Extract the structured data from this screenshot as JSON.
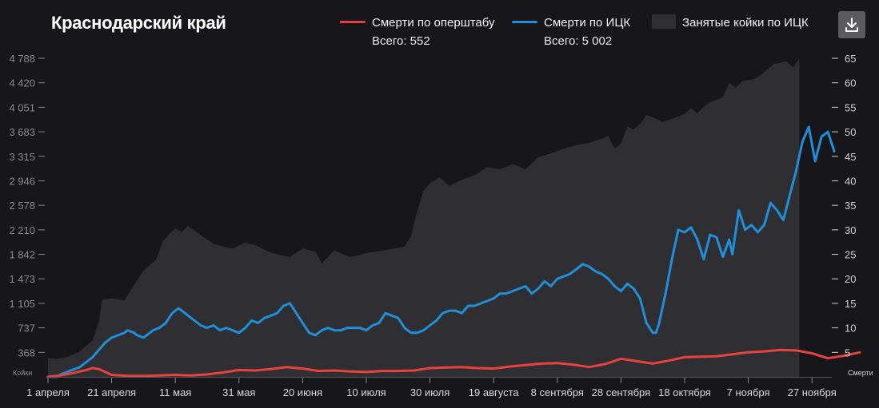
{
  "header": {
    "title": "Краснодарский край",
    "download_icon": "download-icon"
  },
  "legend": {
    "ops": {
      "label": "Смерти по оперштабу",
      "total": "Всего: 552"
    },
    "ick": {
      "label": "Смерти по ИЦК",
      "total": "Всего: 5 002"
    },
    "beds": {
      "label": "Занятые койки по ИЦК"
    }
  },
  "colors": {
    "ops": "#e8423c",
    "ick": "#1e8fd8",
    "beds": "#2f2f33",
    "background": "#16161b"
  },
  "chart_data": {
    "type": "line",
    "left_axis": {
      "label": "Койки",
      "ticks": [
        "368",
        "737",
        "1 105",
        "1 473",
        "1 842",
        "2 210",
        "2 578",
        "2 946",
        "3 315",
        "3 683",
        "4 051",
        "4 420",
        "4 788"
      ],
      "range": [
        0,
        4788
      ]
    },
    "right_axis": {
      "label": "Смерти",
      "ticks": [
        "5",
        "10",
        "15",
        "20",
        "25",
        "30",
        "35",
        "40",
        "45",
        "50",
        "55",
        "60",
        "65"
      ],
      "range": [
        0,
        65
      ]
    },
    "x_ticks": [
      "1 апреля",
      "21 апреля",
      "11 мая",
      "31 мая",
      "20 июня",
      "10 июля",
      "30 июля",
      "19 августа",
      "8 сентября",
      "28 сентября",
      "18 октября",
      "7 ноября",
      "27 ноября"
    ],
    "x_range_days": [
      0,
      240
    ],
    "series": [
      {
        "name": "Занятые койки по ИЦК",
        "axis": "left",
        "points": [
          [
            0,
            280
          ],
          [
            3,
            270
          ],
          [
            6,
            300
          ],
          [
            10,
            380
          ],
          [
            14,
            550
          ],
          [
            16,
            830
          ],
          [
            17,
            1160
          ],
          [
            20,
            1180
          ],
          [
            24,
            1150
          ],
          [
            26,
            1300
          ],
          [
            30,
            1600
          ],
          [
            34,
            1760
          ],
          [
            36,
            2030
          ],
          [
            38,
            2140
          ],
          [
            40,
            2230
          ],
          [
            42,
            2180
          ],
          [
            44,
            2270
          ],
          [
            46,
            2200
          ],
          [
            48,
            2130
          ],
          [
            52,
            2000
          ],
          [
            55,
            1960
          ],
          [
            58,
            1930
          ],
          [
            62,
            2020
          ],
          [
            65,
            1980
          ],
          [
            70,
            1870
          ],
          [
            76,
            1800
          ],
          [
            80,
            1930
          ],
          [
            84,
            1880
          ],
          [
            86,
            1710
          ],
          [
            90,
            1900
          ],
          [
            95,
            1800
          ],
          [
            100,
            1860
          ],
          [
            104,
            1890
          ],
          [
            108,
            1920
          ],
          [
            112,
            1960
          ],
          [
            114,
            2110
          ],
          [
            116,
            2500
          ],
          [
            118,
            2800
          ],
          [
            120,
            2910
          ],
          [
            123,
            3000
          ],
          [
            126,
            2870
          ],
          [
            130,
            2960
          ],
          [
            134,
            3030
          ],
          [
            138,
            3150
          ],
          [
            142,
            3120
          ],
          [
            146,
            3200
          ],
          [
            150,
            3120
          ],
          [
            154,
            3300
          ],
          [
            158,
            3360
          ],
          [
            162,
            3430
          ],
          [
            166,
            3480
          ],
          [
            170,
            3520
          ],
          [
            174,
            3580
          ],
          [
            176,
            3620
          ],
          [
            178,
            3430
          ],
          [
            180,
            3510
          ],
          [
            182,
            3760
          ],
          [
            184,
            3720
          ],
          [
            186,
            3800
          ],
          [
            188,
            3940
          ],
          [
            190,
            3900
          ],
          [
            193,
            3830
          ],
          [
            196,
            3880
          ],
          [
            200,
            3950
          ],
          [
            202,
            4040
          ],
          [
            204,
            3960
          ],
          [
            206,
            4060
          ],
          [
            208,
            4130
          ],
          [
            212,
            4200
          ],
          [
            214,
            4420
          ],
          [
            216,
            4340
          ],
          [
            218,
            4440
          ],
          [
            222,
            4480
          ],
          [
            224,
            4540
          ],
          [
            226,
            4620
          ],
          [
            228,
            4700
          ],
          [
            230,
            4720
          ],
          [
            232,
            4740
          ],
          [
            234,
            4650
          ],
          [
            236,
            4780
          ]
        ]
      },
      {
        "name": "Смерти по ИЦК",
        "axis": "right",
        "points": [
          [
            0,
            0
          ],
          [
            3,
            0
          ],
          [
            4,
            0.5
          ],
          [
            6,
            1
          ],
          [
            8,
            1.5
          ],
          [
            10,
            2
          ],
          [
            12,
            3
          ],
          [
            14,
            4
          ],
          [
            16,
            5.5
          ],
          [
            18,
            7
          ],
          [
            20,
            8
          ],
          [
            22,
            8.5
          ],
          [
            24,
            9
          ],
          [
            25,
            9.5
          ],
          [
            27,
            9
          ],
          [
            28,
            8.5
          ],
          [
            30,
            8
          ],
          [
            32,
            9
          ],
          [
            33,
            9.5
          ],
          [
            35,
            10
          ],
          [
            37,
            11
          ],
          [
            39,
            13
          ],
          [
            41,
            14
          ],
          [
            42,
            13.5
          ],
          [
            44,
            12.5
          ],
          [
            46,
            11.5
          ],
          [
            48,
            10.5
          ],
          [
            50,
            10
          ],
          [
            52,
            10.5
          ],
          [
            54,
            9.5
          ],
          [
            56,
            10
          ],
          [
            58,
            9.5
          ],
          [
            60,
            9
          ],
          [
            62,
            10
          ],
          [
            64,
            11.5
          ],
          [
            66,
            11
          ],
          [
            68,
            12
          ],
          [
            70,
            12.5
          ],
          [
            72,
            13
          ],
          [
            74,
            14.5
          ],
          [
            76,
            15
          ],
          [
            77,
            14
          ],
          [
            78,
            13
          ],
          [
            80,
            11
          ],
          [
            82,
            9
          ],
          [
            84,
            8.5
          ],
          [
            86,
            9.5
          ],
          [
            88,
            10
          ],
          [
            90,
            9.5
          ],
          [
            92,
            9.5
          ],
          [
            94,
            10
          ],
          [
            96,
            10
          ],
          [
            98,
            10
          ],
          [
            100,
            9.5
          ],
          [
            102,
            10.5
          ],
          [
            104,
            11
          ],
          [
            106,
            13
          ],
          [
            108,
            12.5
          ],
          [
            110,
            12
          ],
          [
            112,
            10
          ],
          [
            114,
            9
          ],
          [
            116,
            9
          ],
          [
            118,
            9.5
          ],
          [
            120,
            10.5
          ],
          [
            122,
            11.5
          ],
          [
            124,
            13
          ],
          [
            126,
            13.5
          ],
          [
            128,
            13.5
          ],
          [
            130,
            13
          ],
          [
            132,
            14.5
          ],
          [
            134,
            14.5
          ],
          [
            136,
            15
          ],
          [
            138,
            15.5
          ],
          [
            140,
            16
          ],
          [
            142,
            17
          ],
          [
            144,
            17
          ],
          [
            146,
            17.5
          ],
          [
            148,
            18
          ],
          [
            150,
            18.5
          ],
          [
            152,
            17
          ],
          [
            154,
            18
          ],
          [
            156,
            19.5
          ],
          [
            158,
            18.5
          ],
          [
            160,
            20
          ],
          [
            162,
            20.5
          ],
          [
            164,
            21
          ],
          [
            166,
            22
          ],
          [
            168,
            23
          ],
          [
            170,
            22.5
          ],
          [
            172,
            21.5
          ],
          [
            174,
            21
          ],
          [
            176,
            20
          ],
          [
            178,
            18.5
          ],
          [
            180,
            17.5
          ],
          [
            182,
            19
          ],
          [
            184,
            18
          ],
          [
            186,
            16
          ],
          [
            188,
            11
          ],
          [
            190,
            9
          ],
          [
            191,
            9
          ],
          [
            192,
            11
          ],
          [
            194,
            17
          ],
          [
            196,
            24
          ],
          [
            198,
            30
          ],
          [
            200,
            29.5
          ],
          [
            202,
            30.5
          ],
          [
            204,
            28
          ],
          [
            206,
            24
          ],
          [
            208,
            29
          ],
          [
            210,
            28.5
          ],
          [
            212,
            24.5
          ],
          [
            214,
            28
          ],
          [
            215,
            25
          ],
          [
            217,
            34
          ],
          [
            219,
            30
          ],
          [
            221,
            31
          ],
          [
            223,
            29.5
          ],
          [
            225,
            31
          ],
          [
            227,
            35.5
          ],
          [
            229,
            34
          ],
          [
            231,
            32
          ],
          [
            233,
            37
          ],
          [
            235,
            42
          ],
          [
            237,
            48
          ],
          [
            239,
            51
          ],
          [
            241,
            44
          ],
          [
            243,
            49
          ],
          [
            245,
            50
          ],
          [
            247,
            46
          ]
        ]
      },
      {
        "name": "Смерти по оперштабу",
        "axis": "right",
        "points": [
          [
            0,
            0
          ],
          [
            4,
            0.3
          ],
          [
            8,
            0.8
          ],
          [
            12,
            1.4
          ],
          [
            14,
            1.8
          ],
          [
            16,
            1.6
          ],
          [
            18,
            1
          ],
          [
            20,
            0.4
          ],
          [
            25,
            0.2
          ],
          [
            30,
            0.2
          ],
          [
            35,
            0.3
          ],
          [
            40,
            0.4
          ],
          [
            45,
            0.3
          ],
          [
            50,
            0.5
          ],
          [
            55,
            0.9
          ],
          [
            60,
            1.4
          ],
          [
            65,
            1.3
          ],
          [
            70,
            1.6
          ],
          [
            75,
            2
          ],
          [
            80,
            1.7
          ],
          [
            85,
            1.2
          ],
          [
            90,
            1.3
          ],
          [
            95,
            1.1
          ],
          [
            100,
            1
          ],
          [
            105,
            1.2
          ],
          [
            110,
            1.2
          ],
          [
            115,
            1.3
          ],
          [
            120,
            1.8
          ],
          [
            125,
            1.9
          ],
          [
            130,
            2
          ],
          [
            135,
            1.8
          ],
          [
            140,
            1.7
          ],
          [
            145,
            2.1
          ],
          [
            150,
            2.4
          ],
          [
            155,
            2.7
          ],
          [
            160,
            2.8
          ],
          [
            165,
            2.5
          ],
          [
            170,
            2
          ],
          [
            175,
            2.6
          ],
          [
            180,
            3.7
          ],
          [
            185,
            3.2
          ],
          [
            190,
            2.7
          ],
          [
            195,
            3.3
          ],
          [
            200,
            4
          ],
          [
            205,
            4.1
          ],
          [
            210,
            4.2
          ],
          [
            215,
            4.6
          ],
          [
            220,
            5
          ],
          [
            225,
            5.2
          ],
          [
            230,
            5.5
          ],
          [
            235,
            5.4
          ],
          [
            240,
            4.8
          ],
          [
            245,
            3.8
          ],
          [
            250,
            4.3
          ],
          [
            255,
            5
          ]
        ]
      }
    ]
  }
}
